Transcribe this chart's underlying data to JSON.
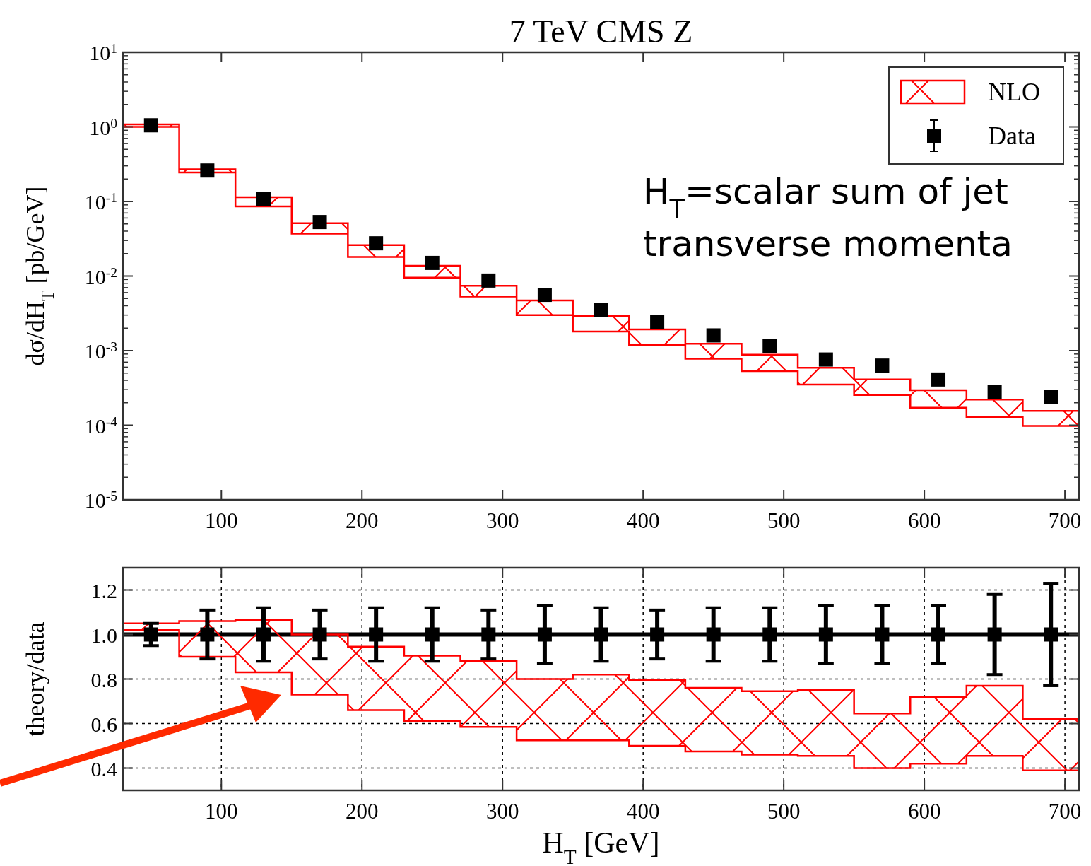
{
  "chart_data": [
    {
      "type": "scatter",
      "title": "7 TeV CMS Z",
      "ylabel": "dσ/dH$_{T}$ [pb/GeV]",
      "xlim": [
        30,
        710
      ],
      "xticks": [
        100,
        200,
        300,
        400,
        500,
        600,
        700
      ],
      "ylim": [
        1e-05,
        10
      ],
      "yticks": [
        {
          "value": 10,
          "label": "10$^{1}$"
        },
        {
          "value": 1,
          "label": "10$^{0}$"
        },
        {
          "value": 0.1,
          "label": "10$^{-1}$"
        },
        {
          "value": 0.01,
          "label": "10$^{-2}$"
        },
        {
          "value": 0.001,
          "label": "10$^{-3}$"
        },
        {
          "value": 0.0001,
          "label": "10$^{-4}$"
        },
        {
          "value": 1e-05,
          "label": "10$^{-5}$"
        }
      ],
      "log": "y",
      "legend": "top right",
      "annotations": [
        "H$_{T}$=scalar sum of jet transverse momenta"
      ],
      "series": [
        {
          "name": "NLO",
          "type": "step",
          "color": "#ff0000",
          "x": [
            30,
            70,
            110,
            150,
            190,
            230,
            270,
            310,
            350,
            390,
            430,
            470,
            510,
            550,
            590,
            630,
            670,
            710
          ],
          "values": [
            null,
            null,
            null,
            null,
            null,
            null,
            null,
            null,
            null,
            null,
            null,
            null,
            null,
            null,
            null,
            null,
            null,
            null
          ],
          "lower": [
            1.0,
            0.245,
            0.086,
            0.037,
            0.018,
            0.0095,
            0.0053,
            0.003,
            0.0018,
            0.00119,
            0.00078,
            0.00053,
            0.00035,
            0.000254,
            0.000172,
            0.000129,
            9.8e-05,
            9.8e-05
          ],
          "upper": [
            1.08,
            0.27,
            0.114,
            0.051,
            0.026,
            0.0137,
            0.0074,
            0.0047,
            0.0029,
            0.00192,
            0.00124,
            0.00088,
            0.00059,
            0.00041,
            0.000295,
            0.00022,
            0.000156,
            0.000156
          ]
        },
        {
          "name": "Data",
          "type": "scatter",
          "color": "#000000",
          "marker": "square",
          "x": [
            50,
            90,
            130,
            170,
            210,
            250,
            290,
            330,
            370,
            410,
            450,
            490,
            530,
            570,
            610,
            650,
            690
          ],
          "values": [
            1.05,
            0.26,
            0.107,
            0.053,
            0.0275,
            0.015,
            0.0087,
            0.0056,
            0.0035,
            0.0024,
            0.0016,
            0.00114,
            0.00076,
            0.00063,
            0.00041,
            0.00028,
            0.00024
          ]
        }
      ]
    },
    {
      "type": "scatter",
      "xlabel": "H$_{T}$ [GeV]",
      "ylabel": "theory/data",
      "xlim": [
        30,
        710
      ],
      "xticks": [
        100,
        200,
        300,
        400,
        500,
        600,
        700
      ],
      "ylim": [
        0.3,
        1.3
      ],
      "yticks": [
        {
          "value": 0.4,
          "label": "0.4"
        },
        {
          "value": 0.6,
          "label": "0.6"
        },
        {
          "value": 0.8,
          "label": "0.8"
        },
        {
          "value": 1,
          "label": "1.0"
        },
        {
          "value": 1.2,
          "label": "1.2"
        }
      ],
      "grid": true,
      "legend": false,
      "ref_lines": [
        {
          "axis": "y",
          "value": 1,
          "color": "#000000"
        }
      ],
      "series": [
        {
          "type": "step",
          "color": "#ff0000",
          "x": [
            30,
            70,
            110,
            150,
            190,
            230,
            270,
            310,
            350,
            390,
            430,
            470,
            510,
            550,
            590,
            630,
            670,
            710
          ],
          "values": [
            null,
            null,
            null,
            null,
            null,
            null,
            null,
            null,
            null,
            null,
            null,
            null,
            null,
            null,
            null,
            null,
            null,
            null
          ],
          "lower": [
            1.02,
            0.9,
            0.83,
            0.73,
            0.66,
            0.61,
            0.585,
            0.525,
            0.525,
            0.5,
            0.475,
            0.46,
            0.455,
            0.4,
            0.42,
            0.455,
            0.39,
            0.39
          ],
          "upper": [
            1.05,
            1.06,
            1.065,
            1.0,
            0.945,
            0.905,
            0.88,
            0.8,
            0.82,
            0.795,
            0.76,
            0.745,
            0.75,
            0.645,
            0.72,
            0.77,
            0.62,
            0.62
          ]
        },
        {
          "type": "scatter",
          "color": "#000000",
          "marker": "square",
          "x": [
            50,
            90,
            130,
            170,
            210,
            250,
            290,
            330,
            370,
            410,
            450,
            490,
            530,
            570,
            610,
            650,
            690
          ],
          "values": [
            1,
            1,
            1,
            1,
            1,
            1,
            1,
            1,
            1,
            1,
            1,
            1,
            1,
            1,
            1,
            1,
            1
          ],
          "errors": [
            0.05,
            0.11,
            0.12,
            0.11,
            0.12,
            0.12,
            0.11,
            0.13,
            0.12,
            0.11,
            0.12,
            0.12,
            0.13,
            0.13,
            0.13,
            0.18,
            0.23
          ]
        }
      ]
    }
  ]
}
